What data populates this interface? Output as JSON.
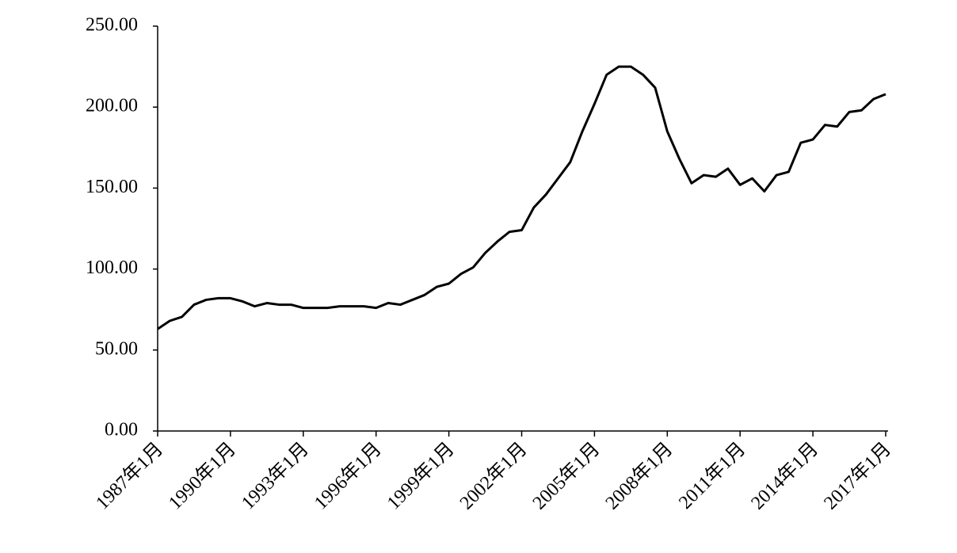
{
  "chart_data": {
    "type": "line",
    "categories": [
      "1987年1月",
      null,
      null,
      null,
      null,
      null,
      "1990年1月",
      null,
      null,
      null,
      null,
      null,
      "1993年1月",
      null,
      null,
      null,
      null,
      null,
      "1996年1月",
      null,
      null,
      null,
      null,
      null,
      "1999年1月",
      null,
      null,
      null,
      null,
      null,
      "2002年1月",
      null,
      null,
      null,
      null,
      null,
      "2005年1月",
      null,
      null,
      null,
      null,
      null,
      "2008年1月",
      null,
      null,
      null,
      null,
      null,
      "2011年1月",
      null,
      null,
      null,
      null,
      null,
      "2014年1月",
      null,
      null,
      null,
      null,
      null,
      "2017年1月"
    ],
    "series": [
      {
        "color": "#000000",
        "values": [
          63,
          68,
          70.5,
          78,
          81,
          82,
          82,
          80,
          77,
          79,
          78,
          78,
          76,
          76,
          76,
          77,
          77,
          77,
          76,
          79,
          78,
          81,
          84,
          89,
          91,
          97,
          101,
          110,
          117,
          123,
          124,
          138,
          146,
          156,
          166,
          185,
          202,
          220,
          225,
          225,
          220,
          212,
          185,
          168,
          153,
          158,
          157,
          162,
          152,
          156,
          148,
          158,
          160,
          178,
          180,
          189,
          188,
          197,
          198,
          205,
          208
        ]
      }
    ],
    "ylim": [
      0,
      250
    ],
    "yticks": [
      {
        "value": 0,
        "label": "0.00"
      },
      {
        "value": 50,
        "label": "50.00"
      },
      {
        "value": 100,
        "label": "100.00"
      },
      {
        "value": 150,
        "label": "150.00"
      },
      {
        "value": 200,
        "label": "200.00"
      },
      {
        "value": 250,
        "label": "250.00"
      }
    ],
    "grid": false
  }
}
